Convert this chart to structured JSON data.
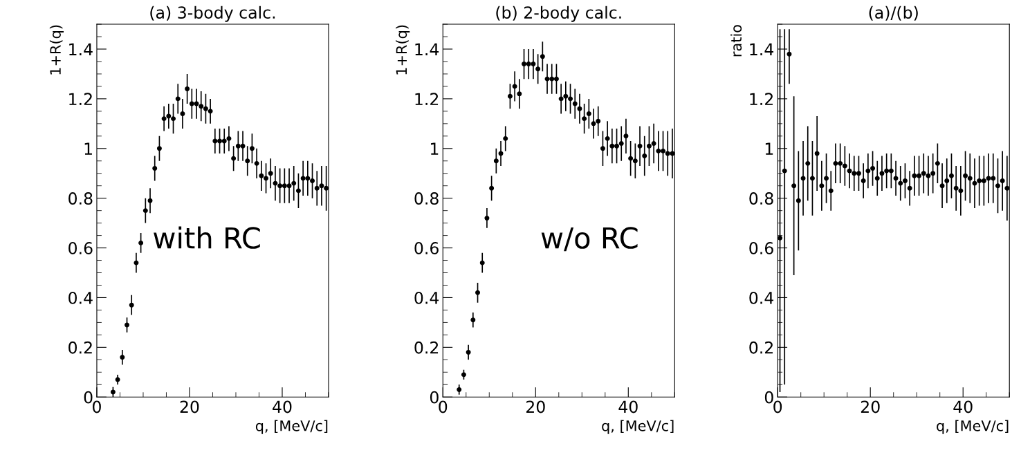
{
  "chart_data": [
    {
      "type": "scatter",
      "title": "(a) 3-body calc.",
      "xlabel": "q, [MeV/c]",
      "ylabel": "1+R(q)",
      "annotations": [
        "with RC"
      ],
      "marker": "circle",
      "xlim": [
        0,
        50
      ],
      "ylim": [
        0,
        1.5
      ],
      "xticks": [
        0,
        20,
        40
      ],
      "yticks": [
        0,
        0.2,
        0.4,
        0.6,
        0.8,
        1,
        1.2,
        1.4
      ],
      "series": [
        {
          "color": "#000000",
          "x": [
            3.5,
            4.5,
            5.5,
            6.5,
            7.5,
            8.5,
            9.5,
            10.5,
            11.5,
            12.5,
            13.5,
            14.5,
            15.5,
            16.5,
            17.5,
            18.5,
            19.5,
            20.5,
            21.5,
            22.5,
            23.5,
            24.5,
            25.5,
            26.5,
            27.5,
            28.5,
            29.5,
            30.5,
            31.5,
            32.5,
            33.5,
            34.5,
            35.5,
            36.5,
            37.5,
            38.5,
            39.5,
            40.5,
            41.5,
            42.5,
            43.5,
            44.5,
            45.5,
            46.5,
            47.5,
            48.5,
            49.5
          ],
          "values": [
            0.02,
            0.07,
            0.16,
            0.29,
            0.37,
            0.54,
            0.62,
            0.75,
            0.79,
            0.92,
            1.0,
            1.12,
            1.13,
            1.12,
            1.2,
            1.14,
            1.24,
            1.18,
            1.18,
            1.17,
            1.16,
            1.15,
            1.03,
            1.03,
            1.03,
            1.04,
            0.96,
            1.01,
            1.01,
            0.95,
            1.0,
            0.94,
            0.89,
            0.88,
            0.9,
            0.86,
            0.85,
            0.85,
            0.85,
            0.86,
            0.83,
            0.88,
            0.88,
            0.87,
            0.84,
            0.85,
            0.84
          ],
          "errors": [
            0.02,
            0.02,
            0.03,
            0.03,
            0.04,
            0.04,
            0.04,
            0.05,
            0.05,
            0.05,
            0.05,
            0.05,
            0.05,
            0.06,
            0.06,
            0.06,
            0.06,
            0.06,
            0.06,
            0.06,
            0.06,
            0.05,
            0.05,
            0.05,
            0.05,
            0.05,
            0.05,
            0.06,
            0.06,
            0.06,
            0.06,
            0.06,
            0.06,
            0.06,
            0.06,
            0.07,
            0.07,
            0.07,
            0.07,
            0.07,
            0.07,
            0.07,
            0.07,
            0.07,
            0.07,
            0.08,
            0.09
          ]
        }
      ]
    },
    {
      "type": "scatter",
      "title": "(b) 2-body calc.",
      "xlabel": "q, [MeV/c]",
      "ylabel": "1+R(q)",
      "annotations": [
        "w/o RC"
      ],
      "marker": "circle",
      "xlim": [
        0,
        50
      ],
      "ylim": [
        0,
        1.5
      ],
      "xticks": [
        0,
        20,
        40
      ],
      "yticks": [
        0,
        0.2,
        0.4,
        0.6,
        0.8,
        1,
        1.2,
        1.4
      ],
      "series": [
        {
          "color": "#000000",
          "x": [
            3.5,
            4.5,
            5.5,
            6.5,
            7.5,
            8.5,
            9.5,
            10.5,
            11.5,
            12.5,
            13.5,
            14.5,
            15.5,
            16.5,
            17.5,
            18.5,
            19.5,
            20.5,
            21.5,
            22.5,
            23.5,
            24.5,
            25.5,
            26.5,
            27.5,
            28.5,
            29.5,
            30.5,
            31.5,
            32.5,
            33.5,
            34.5,
            35.5,
            36.5,
            37.5,
            38.5,
            39.5,
            40.5,
            41.5,
            42.5,
            43.5,
            44.5,
            45.5,
            46.5,
            47.5,
            48.5,
            49.5
          ],
          "values": [
            0.03,
            0.09,
            0.18,
            0.31,
            0.42,
            0.54,
            0.72,
            0.84,
            0.95,
            0.98,
            1.04,
            1.21,
            1.25,
            1.22,
            1.34,
            1.34,
            1.34,
            1.32,
            1.37,
            1.28,
            1.28,
            1.28,
            1.2,
            1.21,
            1.2,
            1.18,
            1.16,
            1.12,
            1.14,
            1.1,
            1.11,
            1.0,
            1.04,
            1.01,
            1.01,
            1.02,
            1.05,
            0.96,
            0.95,
            1.01,
            0.97,
            1.01,
            1.02,
            0.99,
            0.99,
            0.98,
            0.98
          ],
          "errors": [
            0.02,
            0.02,
            0.03,
            0.03,
            0.04,
            0.04,
            0.04,
            0.05,
            0.05,
            0.05,
            0.05,
            0.05,
            0.06,
            0.06,
            0.06,
            0.06,
            0.06,
            0.06,
            0.06,
            0.06,
            0.06,
            0.06,
            0.06,
            0.06,
            0.06,
            0.06,
            0.06,
            0.06,
            0.06,
            0.06,
            0.06,
            0.07,
            0.07,
            0.07,
            0.07,
            0.07,
            0.07,
            0.07,
            0.07,
            0.08,
            0.08,
            0.08,
            0.08,
            0.08,
            0.08,
            0.09,
            0.1
          ]
        }
      ]
    },
    {
      "type": "scatter",
      "title": "(a)/(b)",
      "xlabel": "q, [MeV/c]",
      "ylabel": "ratio",
      "marker": "circle",
      "xlim": [
        0,
        50
      ],
      "ylim": [
        0,
        1.5
      ],
      "xticks": [
        0,
        20,
        40
      ],
      "yticks": [
        0,
        0.2,
        0.4,
        0.6,
        0.8,
        1,
        1.2,
        1.4
      ],
      "series": [
        {
          "color": "#000000",
          "x": [
            0.5,
            1.5,
            2.5,
            3.5,
            4.5,
            5.5,
            6.5,
            7.5,
            8.5,
            9.5,
            10.5,
            11.5,
            12.5,
            13.5,
            14.5,
            15.5,
            16.5,
            17.5,
            18.5,
            19.5,
            20.5,
            21.5,
            22.5,
            23.5,
            24.5,
            25.5,
            26.5,
            27.5,
            28.5,
            29.5,
            30.5,
            31.5,
            32.5,
            33.5,
            34.5,
            35.5,
            36.5,
            37.5,
            38.5,
            39.5,
            40.5,
            41.5,
            42.5,
            43.5,
            44.5,
            45.5,
            46.5,
            47.5,
            48.5,
            49.5
          ],
          "values": [
            0.64,
            0.91,
            1.38,
            0.85,
            0.79,
            0.88,
            0.94,
            0.88,
            0.98,
            0.85,
            0.88,
            0.83,
            0.94,
            0.94,
            0.93,
            0.91,
            0.9,
            0.9,
            0.87,
            0.91,
            0.92,
            0.88,
            0.9,
            0.91,
            0.91,
            0.88,
            0.86,
            0.87,
            0.84,
            0.89,
            0.89,
            0.9,
            0.89,
            0.9,
            0.94,
            0.85,
            0.87,
            0.89,
            0.84,
            0.83,
            0.89,
            0.88,
            0.86,
            0.87,
            0.87,
            0.88,
            0.88,
            0.85,
            0.87,
            0.84
          ],
          "errors": [
            [
              0.02,
              1.48
            ],
            [
              0.05,
              1.48
            ],
            [
              1.26,
              1.48
            ],
            0.36,
            0.2,
            0.15,
            0.15,
            0.15,
            0.15,
            0.1,
            0.1,
            0.08,
            0.08,
            0.08,
            0.08,
            0.07,
            0.07,
            0.07,
            0.07,
            0.07,
            0.07,
            0.07,
            0.07,
            0.07,
            0.07,
            0.07,
            0.07,
            0.07,
            0.07,
            0.08,
            0.08,
            0.08,
            0.08,
            0.08,
            0.08,
            0.09,
            0.09,
            0.09,
            0.09,
            0.1,
            0.1,
            0.1,
            0.1,
            0.1,
            0.1,
            0.1,
            0.1,
            0.11,
            0.12,
            0.13
          ]
        }
      ]
    }
  ]
}
